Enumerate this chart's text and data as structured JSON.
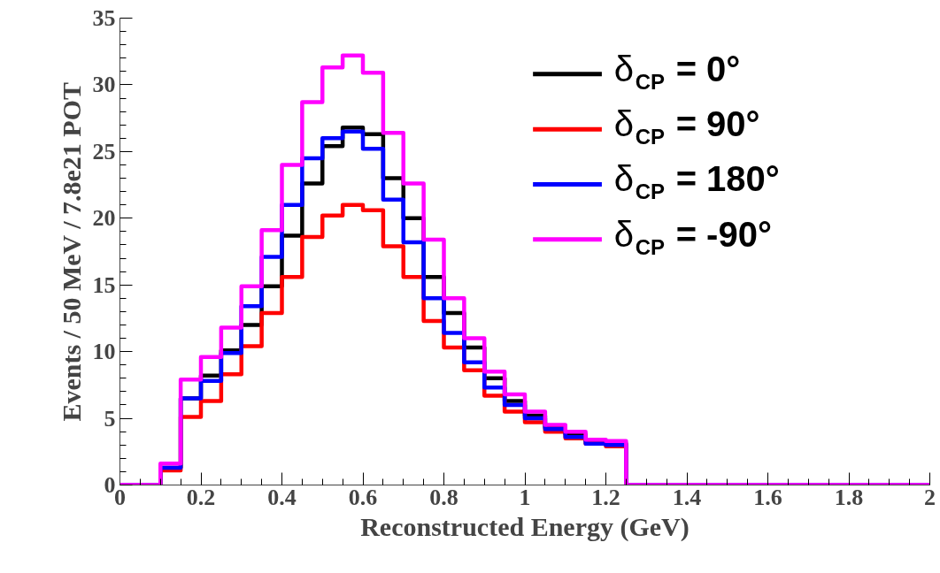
{
  "chart_data": {
    "type": "histogram",
    "xlabel": "Reconstructed Energy (GeV)",
    "ylabel": "Events / 50 MeV / 7.8e21 POT",
    "bins": [
      0,
      0.05,
      0.1,
      0.15,
      0.2,
      0.25,
      0.3,
      0.35,
      0.4,
      0.45,
      0.5,
      0.55,
      0.6,
      0.65,
      0.7,
      0.75,
      0.8,
      0.85,
      0.9,
      0.95,
      1.0,
      1.05,
      1.1,
      1.15,
      1.2,
      1.25,
      1.3,
      1.35,
      1.4,
      1.45,
      1.5,
      1.55,
      1.6,
      1.65,
      1.7,
      1.75,
      1.8,
      1.85,
      1.9,
      1.95,
      2.0
    ],
    "series": [
      {
        "name": "δ$_{CP}$ = 0°",
        "color": "#000000",
        "values": [
          0,
          0,
          1.3,
          6.5,
          8.2,
          10.1,
          12.0,
          14.9,
          18.7,
          22.6,
          25.4,
          26.8,
          26.3,
          23.0,
          20.0,
          15.6,
          12.9,
          10.3,
          8.0,
          6.3,
          5.2,
          4.3,
          3.8,
          3.3,
          3.1,
          0,
          0,
          0,
          0,
          0,
          0,
          0,
          0,
          0,
          0,
          0,
          0,
          0,
          0,
          0
        ]
      },
      {
        "name": "δ$_{CP}$ = 90°",
        "color": "#ff0000",
        "values": [
          0,
          0,
          1.1,
          5.1,
          6.3,
          8.3,
          10.4,
          12.9,
          15.6,
          18.6,
          20.2,
          21.0,
          20.6,
          17.9,
          15.6,
          12.3,
          10.3,
          8.6,
          6.7,
          5.5,
          4.7,
          4.0,
          3.5,
          3.1,
          2.9,
          0,
          0,
          0,
          0,
          0,
          0,
          0,
          0,
          0,
          0,
          0,
          0,
          0,
          0,
          0
        ]
      },
      {
        "name": "δ$_{CP}$ = 180°",
        "color": "#0000ff",
        "values": [
          0,
          0,
          1.3,
          6.5,
          7.8,
          9.9,
          13.4,
          17.1,
          21.0,
          24.5,
          26.0,
          26.5,
          25.2,
          21.4,
          18.2,
          14.0,
          11.4,
          9.2,
          7.3,
          6.0,
          5.0,
          4.2,
          3.6,
          3.1,
          3.0,
          0,
          0,
          0,
          0,
          0,
          0,
          0,
          0,
          0,
          0,
          0,
          0,
          0,
          0,
          0
        ]
      },
      {
        "name": "δ$_{CP}$ = -90°",
        "color": "#ff00ff",
        "values": [
          0,
          0,
          1.6,
          7.9,
          9.6,
          11.8,
          14.9,
          19.1,
          24.0,
          28.7,
          31.3,
          32.2,
          30.9,
          26.4,
          22.6,
          18.4,
          14.0,
          11.0,
          8.5,
          6.8,
          5.5,
          4.5,
          4.0,
          3.4,
          3.3,
          0,
          0,
          0,
          0,
          0,
          0,
          0,
          0,
          0,
          0,
          0,
          0,
          0,
          0,
          0
        ]
      }
    ],
    "xlim": [
      0,
      2
    ],
    "ylim": [
      0,
      35
    ],
    "xticks": [
      0,
      0.2,
      0.4,
      0.6,
      0.8,
      1,
      1.2,
      1.4,
      1.6,
      1.8,
      2
    ],
    "yticks": [
      0,
      5,
      10,
      15,
      20,
      25,
      30,
      35
    ],
    "grid": false,
    "legend": "top right"
  }
}
